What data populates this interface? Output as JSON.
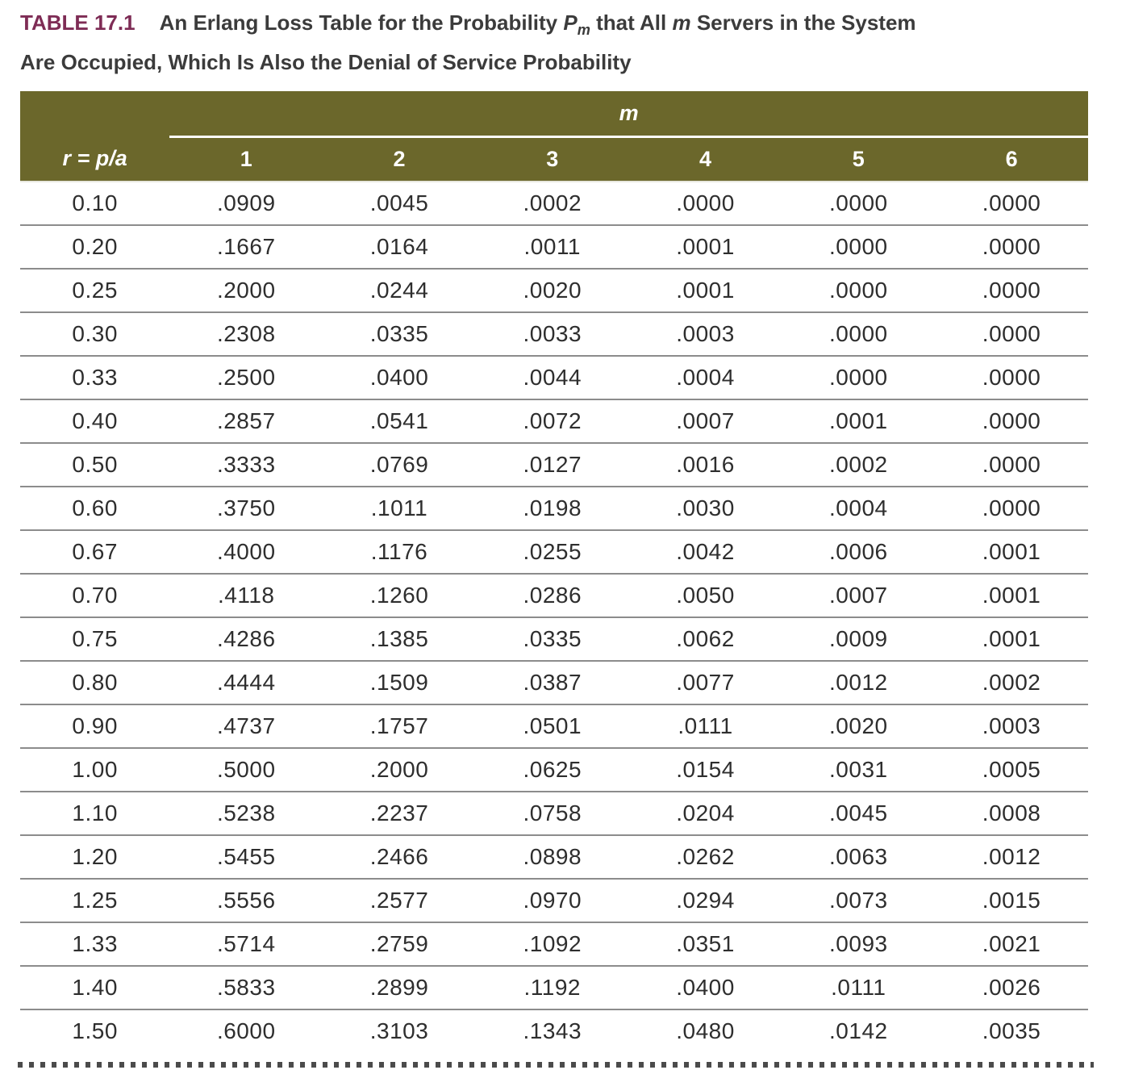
{
  "title": {
    "label": "TABLE 17.1",
    "part1": "An Erlang Loss Table for the Probability ",
    "p_symbol": "P",
    "p_subscript": "m",
    "part2": " that All ",
    "m_italic": "m",
    "part3": " Servers in the System",
    "line2": "Are Occupied, Which Is Also the Denial of Service Probability"
  },
  "chart_data": {
    "type": "table",
    "title": "An Erlang Loss Table for the Probability Pm that All m Servers in the System Are Occupied, Which Is Also the Denial of Service Probability",
    "group_header": "m",
    "row_header_label": "r = p/a",
    "column_headers": [
      "1",
      "2",
      "3",
      "4",
      "5",
      "6"
    ],
    "rows": [
      {
        "r": "0.10",
        "values": [
          ".0909",
          ".0045",
          ".0002",
          ".0000",
          ".0000",
          ".0000"
        ]
      },
      {
        "r": "0.20",
        "values": [
          ".1667",
          ".0164",
          ".0011",
          ".0001",
          ".0000",
          ".0000"
        ]
      },
      {
        "r": "0.25",
        "values": [
          ".2000",
          ".0244",
          ".0020",
          ".0001",
          ".0000",
          ".0000"
        ]
      },
      {
        "r": "0.30",
        "values": [
          ".2308",
          ".0335",
          ".0033",
          ".0003",
          ".0000",
          ".0000"
        ]
      },
      {
        "r": "0.33",
        "values": [
          ".2500",
          ".0400",
          ".0044",
          ".0004",
          ".0000",
          ".0000"
        ]
      },
      {
        "r": "0.40",
        "values": [
          ".2857",
          ".0541",
          ".0072",
          ".0007",
          ".0001",
          ".0000"
        ]
      },
      {
        "r": "0.50",
        "values": [
          ".3333",
          ".0769",
          ".0127",
          ".0016",
          ".0002",
          ".0000"
        ]
      },
      {
        "r": "0.60",
        "values": [
          ".3750",
          ".1011",
          ".0198",
          ".0030",
          ".0004",
          ".0000"
        ]
      },
      {
        "r": "0.67",
        "values": [
          ".4000",
          ".1176",
          ".0255",
          ".0042",
          ".0006",
          ".0001"
        ]
      },
      {
        "r": "0.70",
        "values": [
          ".4118",
          ".1260",
          ".0286",
          ".0050",
          ".0007",
          ".0001"
        ]
      },
      {
        "r": "0.75",
        "values": [
          ".4286",
          ".1385",
          ".0335",
          ".0062",
          ".0009",
          ".0001"
        ]
      },
      {
        "r": "0.80",
        "values": [
          ".4444",
          ".1509",
          ".0387",
          ".0077",
          ".0012",
          ".0002"
        ]
      },
      {
        "r": "0.90",
        "values": [
          ".4737",
          ".1757",
          ".0501",
          ".0111",
          ".0020",
          ".0003"
        ]
      },
      {
        "r": "1.00",
        "values": [
          ".5000",
          ".2000",
          ".0625",
          ".0154",
          ".0031",
          ".0005"
        ]
      },
      {
        "r": "1.10",
        "values": [
          ".5238",
          ".2237",
          ".0758",
          ".0204",
          ".0045",
          ".0008"
        ]
      },
      {
        "r": "1.20",
        "values": [
          ".5455",
          ".2466",
          ".0898",
          ".0262",
          ".0063",
          ".0012"
        ]
      },
      {
        "r": "1.25",
        "values": [
          ".5556",
          ".2577",
          ".0970",
          ".0294",
          ".0073",
          ".0015"
        ]
      },
      {
        "r": "1.33",
        "values": [
          ".5714",
          ".2759",
          ".1092",
          ".0351",
          ".0093",
          ".0021"
        ]
      },
      {
        "r": "1.40",
        "values": [
          ".5833",
          ".2899",
          ".1192",
          ".0400",
          ".0111",
          ".0026"
        ]
      },
      {
        "r": "1.50",
        "values": [
          ".6000",
          ".3103",
          ".1343",
          ".0480",
          ".0142",
          ".0035"
        ]
      }
    ]
  },
  "colors": {
    "header_background": "#6b672b",
    "table_label": "#7e2c55",
    "header_text": "#ffffff",
    "body_text": "#2e2e2e",
    "row_separator": "#8c8c8c",
    "continuation_dots": "#4b4b4b"
  }
}
